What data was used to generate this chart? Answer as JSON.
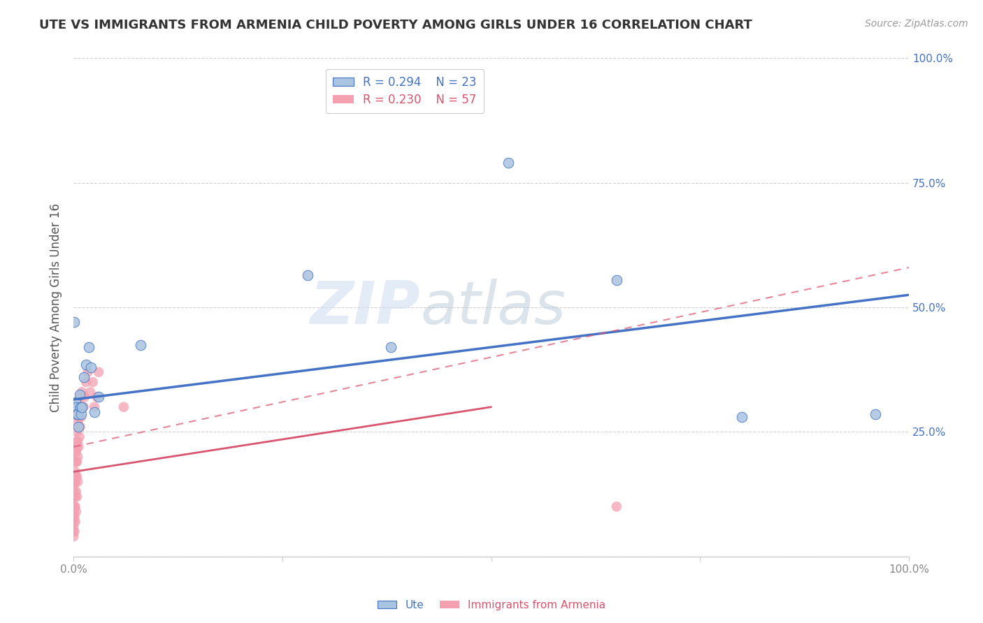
{
  "title": "UTE VS IMMIGRANTS FROM ARMENIA CHILD POVERTY AMONG GIRLS UNDER 16 CORRELATION CHART",
  "source": "Source: ZipAtlas.com",
  "ylabel": "Child Poverty Among Girls Under 16",
  "xlabel": "",
  "legend_label_1": "Ute",
  "legend_label_2": "Immigrants from Armenia",
  "R1": 0.294,
  "N1": 23,
  "R2": 0.23,
  "N2": 57,
  "color_ute": "#a8c4e0",
  "color_armenia": "#f4a0b0",
  "trendline_ute_color": "#4472c4",
  "trendline_armenia_color": "#d9546e",
  "watermark_zip": "ZIP",
  "watermark_atlas": "atlas",
  "ute_x": [
    0.001,
    0.002,
    0.003,
    0.004,
    0.005,
    0.006,
    0.007,
    0.008,
    0.009,
    0.01,
    0.012,
    0.015,
    0.018,
    0.021,
    0.025,
    0.03,
    0.08,
    0.28,
    0.38,
    0.52,
    0.65,
    0.8,
    0.96
  ],
  "ute_y": [
    0.47,
    0.31,
    0.3,
    0.285,
    0.285,
    0.26,
    0.325,
    0.3,
    0.285,
    0.3,
    0.36,
    0.385,
    0.42,
    0.38,
    0.29,
    0.32,
    0.425,
    0.565,
    0.42,
    0.79,
    0.555,
    0.28,
    0.285
  ],
  "armenia_x": [
    0.0,
    0.0,
    0.0,
    0.0,
    0.0,
    0.0,
    0.0,
    0.0,
    0.0,
    0.001,
    0.001,
    0.001,
    0.001,
    0.001,
    0.001,
    0.002,
    0.002,
    0.002,
    0.002,
    0.002,
    0.002,
    0.002,
    0.003,
    0.003,
    0.003,
    0.003,
    0.003,
    0.003,
    0.004,
    0.004,
    0.004,
    0.004,
    0.004,
    0.005,
    0.005,
    0.005,
    0.005,
    0.006,
    0.006,
    0.007,
    0.007,
    0.008,
    0.008,
    0.009,
    0.01,
    0.011,
    0.012,
    0.013,
    0.015,
    0.017,
    0.02,
    0.023,
    0.025,
    0.028,
    0.03,
    0.06,
    0.65
  ],
  "armenia_y": [
    0.14,
    0.12,
    0.1,
    0.09,
    0.08,
    0.07,
    0.06,
    0.05,
    0.04,
    0.16,
    0.15,
    0.13,
    0.1,
    0.08,
    0.05,
    0.21,
    0.19,
    0.17,
    0.15,
    0.12,
    0.1,
    0.07,
    0.23,
    0.21,
    0.19,
    0.16,
    0.13,
    0.09,
    0.25,
    0.22,
    0.19,
    0.16,
    0.12,
    0.27,
    0.23,
    0.2,
    0.15,
    0.28,
    0.22,
    0.29,
    0.24,
    0.32,
    0.26,
    0.28,
    0.33,
    0.3,
    0.3,
    0.32,
    0.35,
    0.37,
    0.33,
    0.35,
    0.3,
    0.32,
    0.37,
    0.3,
    0.1
  ],
  "xlim": [
    0.0,
    1.0
  ],
  "ylim": [
    0.0,
    1.0
  ],
  "background_color": "#ffffff",
  "trendline_ute_x0": 0.0,
  "trendline_ute_y0": 0.315,
  "trendline_ute_x1": 1.0,
  "trendline_ute_y1": 0.525,
  "trendline_arm_x0": 0.0,
  "trendline_arm_y0": 0.17,
  "trendline_arm_x1": 0.5,
  "trendline_arm_y1": 0.3,
  "trendline_arm_dashed_x0": 0.0,
  "trendline_arm_dashed_y0": 0.22,
  "trendline_arm_dashed_x1": 1.0,
  "trendline_arm_dashed_y1": 0.58
}
